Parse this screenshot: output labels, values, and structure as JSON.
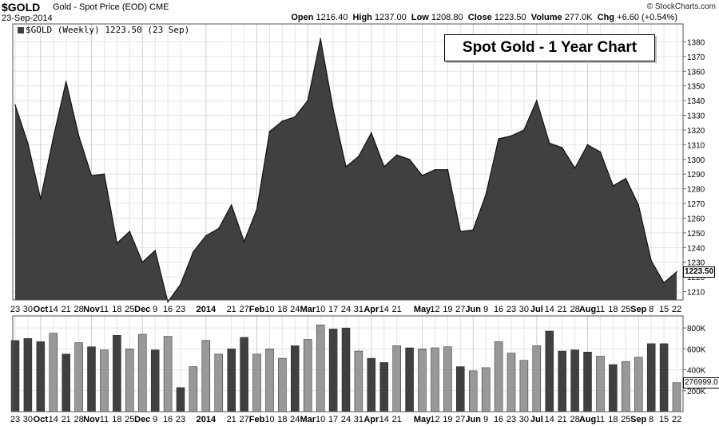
{
  "header": {
    "symbol": "$GOLD",
    "description": "Gold - Spot Price (EOD)",
    "exchange": "CME",
    "date": "23-Sep-2014",
    "copyright": "© StockCharts.com",
    "open_label": "Open",
    "open": "1216.40",
    "high_label": "High",
    "high": "1237.00",
    "low_label": "Low",
    "low": "1208.80",
    "close_label": "Close",
    "close": "1223.50",
    "volume_label": "Volume",
    "volume": "277.0K",
    "chg_label": "Chg",
    "chg": "+6.60 (+0.54%)",
    "legend": "$GOLD (Weekly) 1223.50 (23 Sep)",
    "last_price_label": "1223.50",
    "last_volume_label": "276999.0"
  },
  "colors": {
    "area": "#404040",
    "vol_dark": "#404040",
    "vol_light": "#999999",
    "grid": "#e4e4e4"
  },
  "chart_data": [
    {
      "type": "area",
      "title": "Spot Gold - 1 Year Chart",
      "xlabel": "",
      "ylabel": "",
      "ylim": [
        1200,
        1385
      ],
      "yticks": [
        1210,
        1220,
        1230,
        1240,
        1250,
        1260,
        1270,
        1280,
        1290,
        1300,
        1310,
        1320,
        1330,
        1340,
        1350,
        1360,
        1370,
        1380
      ],
      "grid": true,
      "x": [
        "2013-09-23",
        "2013-09-30",
        "2013-10-07",
        "2013-10-14",
        "2013-10-21",
        "2013-10-28",
        "2013-11-04",
        "2013-11-11",
        "2013-11-18",
        "2013-11-25",
        "2013-12-02",
        "2013-12-09",
        "2013-12-16",
        "2013-12-23",
        "2013-12-30",
        "2014-01-06",
        "2014-01-13",
        "2014-01-21",
        "2014-01-27",
        "2014-02-03",
        "2014-02-10",
        "2014-02-18",
        "2014-02-24",
        "2014-03-03",
        "2014-03-10",
        "2014-03-17",
        "2014-03-24",
        "2014-03-31",
        "2014-04-07",
        "2014-04-14",
        "2014-04-21",
        "2014-04-28",
        "2014-05-05",
        "2014-05-12",
        "2014-05-19",
        "2014-05-27",
        "2014-06-02",
        "2014-06-09",
        "2014-06-16",
        "2014-06-23",
        "2014-06-30",
        "2014-07-07",
        "2014-07-14",
        "2014-07-21",
        "2014-07-28",
        "2014-08-04",
        "2014-08-11",
        "2014-08-18",
        "2014-08-25",
        "2014-09-02",
        "2014-09-08",
        "2014-09-15",
        "2014-09-22"
      ],
      "values": [
        1337,
        1311,
        1273,
        1315,
        1353,
        1316,
        1289,
        1290,
        1243,
        1251,
        1230,
        1238,
        1203,
        1215,
        1237,
        1248,
        1253,
        1269,
        1244,
        1266,
        1319,
        1326,
        1329,
        1340,
        1382,
        1334,
        1295,
        1302,
        1318,
        1295,
        1303,
        1300,
        1289,
        1293,
        1293,
        1251,
        1252,
        1276,
        1314,
        1316,
        1320,
        1340,
        1311,
        1308,
        1294,
        1310,
        1305,
        1282,
        1287,
        1269,
        1231,
        1216,
        1223.5
      ]
    },
    {
      "type": "bar",
      "series_label": "Volume",
      "ylim": [
        0,
        900000
      ],
      "yticks": [
        200000,
        400000,
        600000,
        800000
      ],
      "ytick_labels": [
        "200K",
        "400K",
        "600K",
        "800K"
      ],
      "x_labels": [
        "23",
        "30",
        "Oct",
        "14",
        "21",
        "28",
        "Nov",
        "11",
        "18",
        "25",
        "Dec",
        "9",
        "16",
        "23",
        "2014",
        "21",
        "27",
        "Feb",
        "10",
        "18",
        "24",
        "Mar",
        "10",
        "17",
        "24",
        "31",
        "Apr",
        "14",
        "21",
        "May",
        "12",
        "19",
        "27",
        "Jun",
        "9",
        "16",
        "23",
        "30",
        "Jul",
        "14",
        "21",
        "28",
        "Aug",
        "11",
        "18",
        "25",
        "Sep",
        "8",
        "15",
        "22"
      ],
      "values": [
        680000,
        700000,
        670000,
        750000,
        550000,
        660000,
        620000,
        590000,
        730000,
        600000,
        740000,
        590000,
        720000,
        230000,
        430000,
        680000,
        550000,
        600000,
        710000,
        550000,
        600000,
        510000,
        630000,
        690000,
        830000,
        790000,
        800000,
        580000,
        510000,
        470000,
        630000,
        610000,
        600000,
        610000,
        620000,
        430000,
        390000,
        420000,
        670000,
        560000,
        490000,
        630000,
        770000,
        580000,
        590000,
        570000,
        530000,
        450000,
        480000,
        520000,
        650000,
        650000,
        277000
      ],
      "dark": [
        true,
        true,
        true,
        false,
        true,
        false,
        true,
        false,
        true,
        false,
        false,
        true,
        false,
        true,
        false,
        false,
        false,
        true,
        true,
        false,
        false,
        false,
        true,
        false,
        false,
        true,
        true,
        false,
        true,
        true,
        false,
        true,
        false,
        false,
        false,
        true,
        false,
        false,
        false,
        false,
        false,
        false,
        true,
        true,
        true,
        true,
        false,
        true,
        false,
        false,
        true,
        true,
        false
      ]
    }
  ],
  "x_axis": {
    "labels": [
      {
        "t": "23",
        "w": 0
      },
      {
        "t": "30",
        "w": 1
      },
      {
        "t": "Oct",
        "w": 2,
        "b": true
      },
      {
        "t": "14",
        "w": 3
      },
      {
        "t": "21",
        "w": 4
      },
      {
        "t": "28",
        "w": 5
      },
      {
        "t": "Nov",
        "w": 6,
        "b": true
      },
      {
        "t": "11",
        "w": 7
      },
      {
        "t": "18",
        "w": 8
      },
      {
        "t": "25",
        "w": 9
      },
      {
        "t": "Dec",
        "w": 10,
        "b": true
      },
      {
        "t": "9",
        "w": 11
      },
      {
        "t": "16",
        "w": 12
      },
      {
        "t": "23",
        "w": 13
      },
      {
        "t": "2014",
        "w": 15,
        "b": true
      },
      {
        "t": "21",
        "w": 17
      },
      {
        "t": "27",
        "w": 18
      },
      {
        "t": "Feb",
        "w": 19,
        "b": true
      },
      {
        "t": "10",
        "w": 20
      },
      {
        "t": "18",
        "w": 21
      },
      {
        "t": "24",
        "w": 22
      },
      {
        "t": "Mar",
        "w": 23,
        "b": true
      },
      {
        "t": "10",
        "w": 24
      },
      {
        "t": "17",
        "w": 25
      },
      {
        "t": "24",
        "w": 26
      },
      {
        "t": "31",
        "w": 27
      },
      {
        "t": "Apr",
        "w": 28,
        "b": true
      },
      {
        "t": "14",
        "w": 29
      },
      {
        "t": "21",
        "w": 30
      },
      {
        "t": "May",
        "w": 32,
        "b": true
      },
      {
        "t": "12",
        "w": 33
      },
      {
        "t": "19",
        "w": 34
      },
      {
        "t": "27",
        "w": 35
      },
      {
        "t": "Jun",
        "w": 36,
        "b": true
      },
      {
        "t": "9",
        "w": 37
      },
      {
        "t": "16",
        "w": 38
      },
      {
        "t": "23",
        "w": 39
      },
      {
        "t": "30",
        "w": 40
      },
      {
        "t": "Jul",
        "w": 41,
        "b": true
      },
      {
        "t": "14",
        "w": 42
      },
      {
        "t": "21",
        "w": 43
      },
      {
        "t": "28",
        "w": 44
      },
      {
        "t": "Aug",
        "w": 45,
        "b": true
      },
      {
        "t": "11",
        "w": 46
      },
      {
        "t": "18",
        "w": 47
      },
      {
        "t": "25",
        "w": 48
      },
      {
        "t": "Sep",
        "w": 49,
        "b": true
      },
      {
        "t": "8",
        "w": 50
      },
      {
        "t": "15",
        "w": 51
      },
      {
        "t": "22",
        "w": 52
      }
    ]
  }
}
